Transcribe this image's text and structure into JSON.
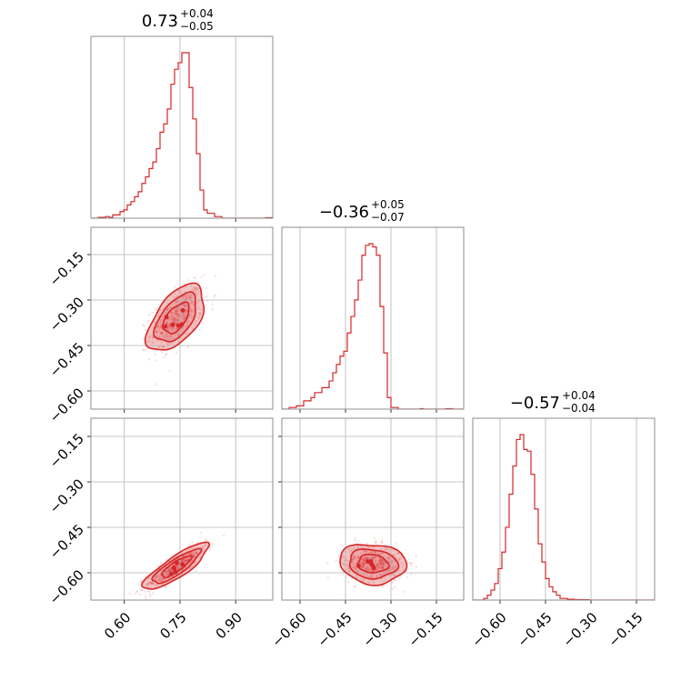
{
  "chart_data": {
    "type": "corner",
    "color": "#d62728",
    "parameters": [
      {
        "id": "p0",
        "median": 0.73,
        "err_plus": 0.04,
        "err_minus": 0.05,
        "title": {
          "value": "0.73",
          "plus": "+0.04",
          "minus": "−0.05"
        },
        "range": [
          0.51,
          1.0
        ],
        "ticks": [
          0.6,
          0.75,
          0.9
        ],
        "tick_labels": [
          "0.60",
          "0.75",
          "0.90"
        ]
      },
      {
        "id": "p1",
        "median": -0.36,
        "err_plus": 0.05,
        "err_minus": 0.07,
        "title": {
          "value": "−0.36",
          "plus": "+0.05",
          "minus": "−0.07"
        },
        "range": [
          -0.66,
          -0.06
        ],
        "ticks": [
          -0.6,
          -0.45,
          -0.3,
          -0.15
        ],
        "tick_labels": [
          "−0.60",
          "−0.45",
          "−0.30",
          "−0.15"
        ]
      },
      {
        "id": "p2",
        "median": -0.57,
        "err_plus": 0.04,
        "err_minus": 0.04,
        "title": {
          "value": "−0.57",
          "plus": "+0.04",
          "minus": "−0.04"
        },
        "range": [
          -0.69,
          -0.09
        ],
        "ticks": [
          -0.6,
          -0.45,
          -0.3,
          -0.15
        ],
        "tick_labels": [
          "−0.60",
          "−0.45",
          "−0.30",
          "−0.15"
        ]
      }
    ],
    "histograms": [
      {
        "param": 0,
        "bins": [
          0.51,
          1.0
        ],
        "heights": [
          0,
          0,
          0.005,
          0.005,
          0.01,
          0.005,
          0.02,
          0.02,
          0.04,
          0.05,
          0.08,
          0.1,
          0.13,
          0.16,
          0.21,
          0.25,
          0.3,
          0.34,
          0.42,
          0.52,
          0.57,
          0.66,
          0.81,
          0.9,
          0.94,
          1.0,
          1.0,
          0.79,
          0.6,
          0.39,
          0.17,
          0.05,
          0.03,
          0.03,
          0.01,
          0.01,
          0,
          0,
          0,
          0,
          0,
          0,
          0,
          0,
          0,
          0,
          0,
          0,
          0.003,
          0.003
        ]
      },
      {
        "param": 1,
        "bins": [
          -0.66,
          -0.06
        ],
        "heights": [
          0,
          0,
          0.01,
          0.01,
          0.02,
          0.02,
          0.05,
          0.05,
          0.07,
          0.1,
          0.1,
          0.13,
          0.13,
          0.17,
          0.22,
          0.27,
          0.32,
          0.35,
          0.46,
          0.56,
          0.66,
          0.78,
          0.93,
          0.99,
          1.0,
          0.98,
          0.93,
          0.62,
          0.34,
          0.07,
          0.01,
          0.01,
          0,
          0,
          0,
          0,
          0,
          0,
          0.003,
          0,
          0,
          0,
          0,
          0,
          0,
          0.003,
          0.003,
          0,
          0,
          0
        ]
      },
      {
        "param": 2,
        "bins": [
          -0.69,
          -0.09
        ],
        "heights": [
          0,
          0,
          0,
          0.01,
          0.03,
          0.06,
          0.1,
          0.19,
          0.29,
          0.44,
          0.64,
          0.81,
          0.97,
          1.0,
          0.91,
          0.9,
          0.76,
          0.55,
          0.34,
          0.23,
          0.13,
          0.08,
          0.05,
          0.03,
          0.01,
          0.01,
          0.005,
          0.005,
          0.003,
          0.003,
          0.002,
          0.002,
          0,
          0,
          0,
          0,
          0,
          0,
          0,
          0,
          0,
          0,
          0,
          0,
          0,
          0,
          0,
          0,
          0,
          0
        ]
      }
    ],
    "scatter_2d": [
      {
        "x_param": 0,
        "y_param": 1,
        "center": [
          0.74,
          -0.36
        ],
        "sigma": [
          0.035,
          0.05
        ],
        "rho": 0.55
      },
      {
        "x_param": 0,
        "y_param": 2,
        "center": [
          0.74,
          -0.58
        ],
        "sigma": [
          0.04,
          0.035
        ],
        "rho": 0.85
      },
      {
        "x_param": 1,
        "y_param": 2,
        "center": [
          -0.36,
          -0.57
        ],
        "sigma": [
          0.05,
          0.03
        ],
        "rho": -0.1
      }
    ],
    "contour_levels": [
      1.0,
      1.6,
      2.2
    ]
  }
}
